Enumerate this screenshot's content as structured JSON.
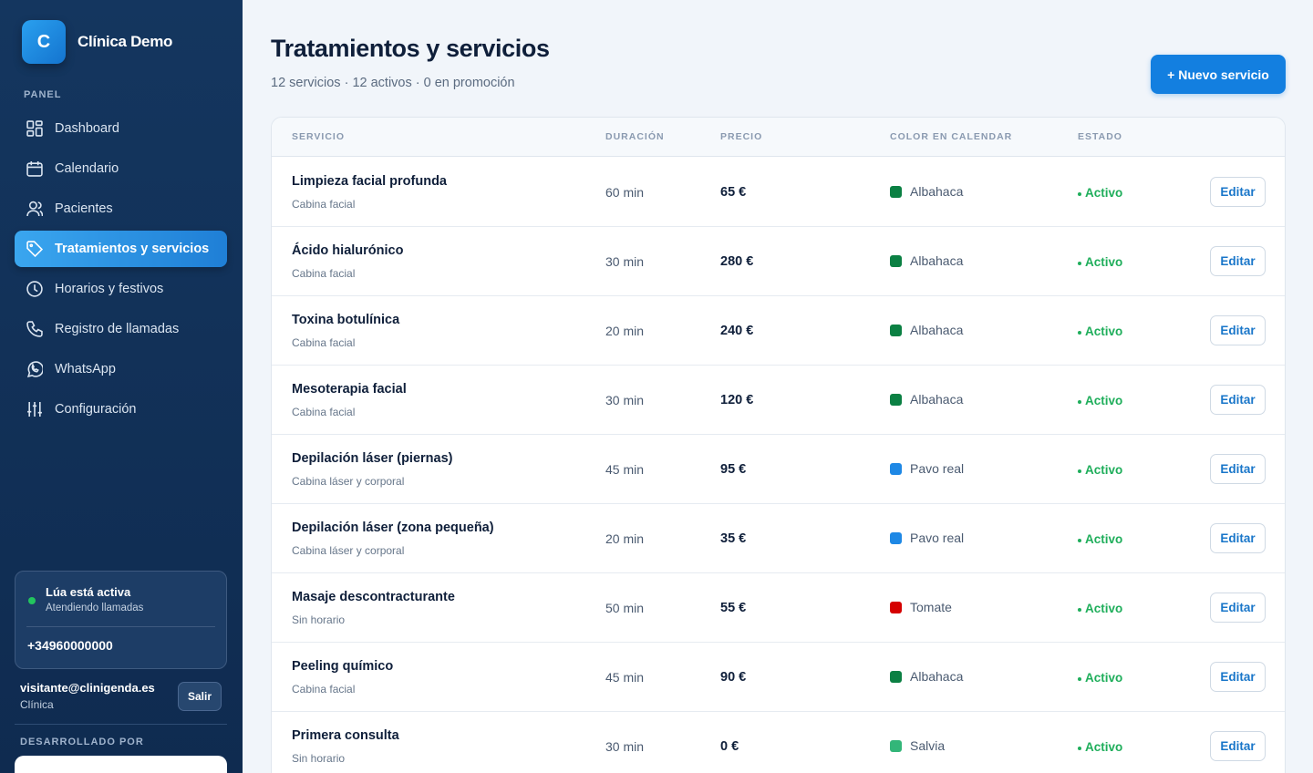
{
  "sidebar": {
    "logo_letter": "C",
    "brand": "Clínica Demo",
    "section": "PANEL",
    "nav": [
      {
        "label": "Dashboard"
      },
      {
        "label": "Calendario"
      },
      {
        "label": "Pacientes"
      },
      {
        "label": "Tratamientos y servicios",
        "active": true
      },
      {
        "label": "Horarios y festivos"
      },
      {
        "label": "Registro de llamadas"
      },
      {
        "label": "WhatsApp"
      },
      {
        "label": "Configuración"
      }
    ],
    "status": {
      "title": "Lúa está activa",
      "subtitle": "Atendiendo llamadas",
      "phone": "+34960000000"
    },
    "user": {
      "email": "visitante@clinigenda.es",
      "role": "Clínica",
      "logout": "Salir"
    },
    "footer_label": "DESARROLLADO POR"
  },
  "header": {
    "title": "Tratamientos y servicios",
    "summary": "12 servicios · 12 activos · 0 en promoción",
    "button": "+ Nuevo servicio"
  },
  "table": {
    "columns": [
      "SERVICIO",
      "DURACIÓN",
      "PRECIO",
      "COLOR EN CALENDAR",
      "ESTADO"
    ],
    "rows": [
      {
        "name": "Limpieza facial profunda",
        "location": "Cabina facial",
        "duration": "60 min",
        "price": "65 €",
        "color_name": "Albahaca",
        "color": "#0b8043",
        "status": "Activo",
        "action": "Editar"
      },
      {
        "name": "Ácido hialurónico",
        "location": "Cabina facial",
        "duration": "30 min",
        "price": "280 €",
        "color_name": "Albahaca",
        "color": "#0b8043",
        "status": "Activo",
        "action": "Editar"
      },
      {
        "name": "Toxina botulínica",
        "location": "Cabina facial",
        "duration": "20 min",
        "price": "240 €",
        "color_name": "Albahaca",
        "color": "#0b8043",
        "status": "Activo",
        "action": "Editar"
      },
      {
        "name": "Mesoterapia facial",
        "location": "Cabina facial",
        "duration": "30 min",
        "price": "120 €",
        "color_name": "Albahaca",
        "color": "#0b8043",
        "status": "Activo",
        "action": "Editar"
      },
      {
        "name": "Depilación láser (piernas)",
        "location": "Cabina láser y corporal",
        "duration": "45 min",
        "price": "95 €",
        "color_name": "Pavo real",
        "color": "#1e88e5",
        "status": "Activo",
        "action": "Editar"
      },
      {
        "name": "Depilación láser (zona pequeña)",
        "location": "Cabina láser y corporal",
        "duration": "20 min",
        "price": "35 €",
        "color_name": "Pavo real",
        "color": "#1e88e5",
        "status": "Activo",
        "action": "Editar"
      },
      {
        "name": "Masaje descontracturante",
        "location": "Sin horario",
        "duration": "50 min",
        "price": "55 €",
        "color_name": "Tomate",
        "color": "#d50000",
        "status": "Activo",
        "action": "Editar"
      },
      {
        "name": "Peeling químico",
        "location": "Cabina facial",
        "duration": "45 min",
        "price": "90 €",
        "color_name": "Albahaca",
        "color": "#0b8043",
        "status": "Activo",
        "action": "Editar"
      },
      {
        "name": "Primera consulta",
        "location": "Sin horario",
        "duration": "30 min",
        "price": "0 €",
        "color_name": "Salvia",
        "color": "#33b679",
        "status": "Activo",
        "action": "Editar"
      }
    ]
  }
}
